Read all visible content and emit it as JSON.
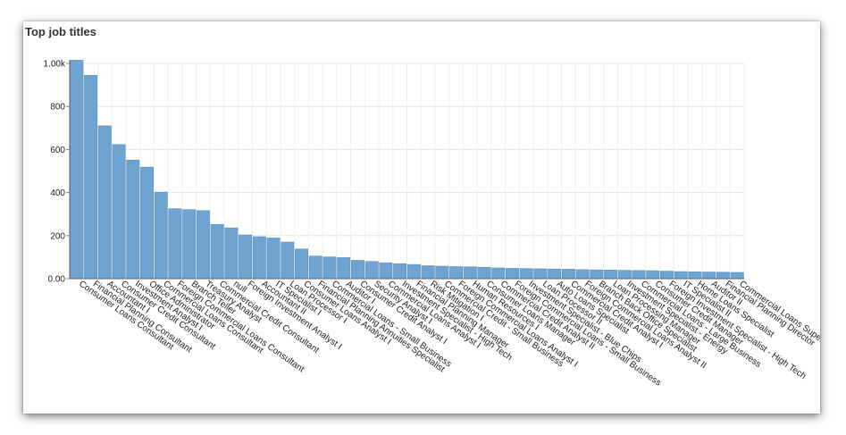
{
  "chart_data": {
    "type": "bar",
    "title": "Top job titles",
    "xlabel": "",
    "ylabel": "",
    "ylim": [
      0,
      1000
    ],
    "yticks": [
      "0.00",
      "200",
      "400",
      "600",
      "800",
      "1.00k"
    ],
    "grid": true,
    "bar_color": "#6fa3d2",
    "bar_stroke": "#5a8fc0",
    "categories": [
      "Consumer Loans Consultant",
      "Financial Planning Consultant",
      "Accountant I",
      "Consumer Credit Consultant",
      "Investment Analyst I",
      "Office Administrator",
      "Commercial Loans Consultant",
      "Foreign Commercial Loans Consultant",
      "Branch Teller",
      "Treasury Analyst",
      "Commercial Credit Consultant",
      "null",
      "Foreign Investment Analyst I",
      "Accountant II",
      "IT Specialist I",
      "Loan Processor I",
      "Consumer Loans Analyst I",
      "Financial Planning Annuities Specialist",
      "Commercial Loans - Small Business",
      "Auditor I",
      "Consumer Credit Analyst I",
      "Security Analyst I",
      "Commercial Loans Analyst I",
      "Investment Specialist - High Tech",
      "Financial Planning Manager",
      "Risk Mitigation I",
      "Commercial Credit - Small Business",
      "Foreign Commercial Loans Analyst I",
      "Human Resources I",
      "Consumer Loans Manager",
      "Commercial Credit Analyst II",
      "Foreign Commercial Loans - Small Business",
      "Investment Specialist - Blue Chips",
      "Loan Processor II",
      "Auto Loans Specialist",
      "Commercial Credit Analyst I",
      "Foreign Commercial Loans Analyst II",
      "Branch Back Office Specialist",
      "Loan Processing Manager",
      "Investment Specialist - Energy",
      "Commercial Loans - Large Business",
      "Consumer Credit Manager",
      "Foreign Investment Specialist - High Tech",
      "IT Specialist II",
      "Home Loans Specialist",
      "Auditor II",
      "Financial Planning Director",
      "Commercial Loans Supervisor"
    ],
    "values": [
      1015,
      945,
      710,
      623,
      551,
      518,
      402,
      325,
      321,
      316,
      252,
      236,
      203,
      195,
      189,
      170,
      138,
      105,
      101,
      98,
      85,
      80,
      74,
      70,
      66,
      60,
      58,
      56,
      55,
      53,
      50,
      48,
      47,
      46,
      45,
      44,
      42,
      41,
      40,
      39,
      38,
      37,
      35,
      33,
      32,
      31,
      30,
      29
    ]
  }
}
